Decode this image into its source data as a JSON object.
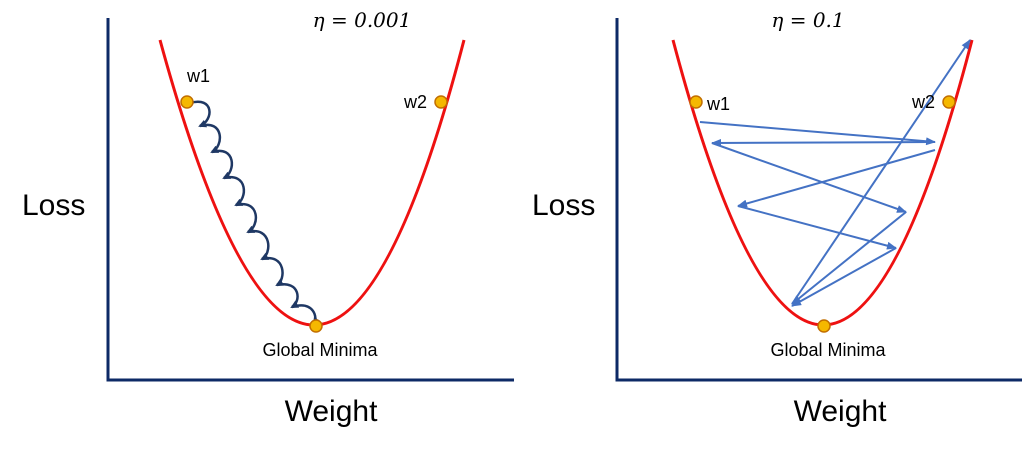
{
  "panels": [
    {
      "eta_label": "η = 0.001",
      "y_label": "Loss",
      "x_label": "Weight",
      "minimum_label": "Global Minima",
      "point_labels": [
        "w1",
        "w2"
      ]
    },
    {
      "eta_label": "η = 0.1",
      "y_label": "Loss",
      "x_label": "Weight",
      "minimum_label": "Global Minima",
      "point_labels": [
        "w1",
        "w2"
      ]
    }
  ],
  "colors": {
    "axis": "#0d2a66",
    "curve": "#ee1111",
    "point_fill": "#f5b800",
    "point_stroke": "#c26f00",
    "small_step_arrows": "#1f3864",
    "large_step_arrows": "#4472c4"
  }
}
